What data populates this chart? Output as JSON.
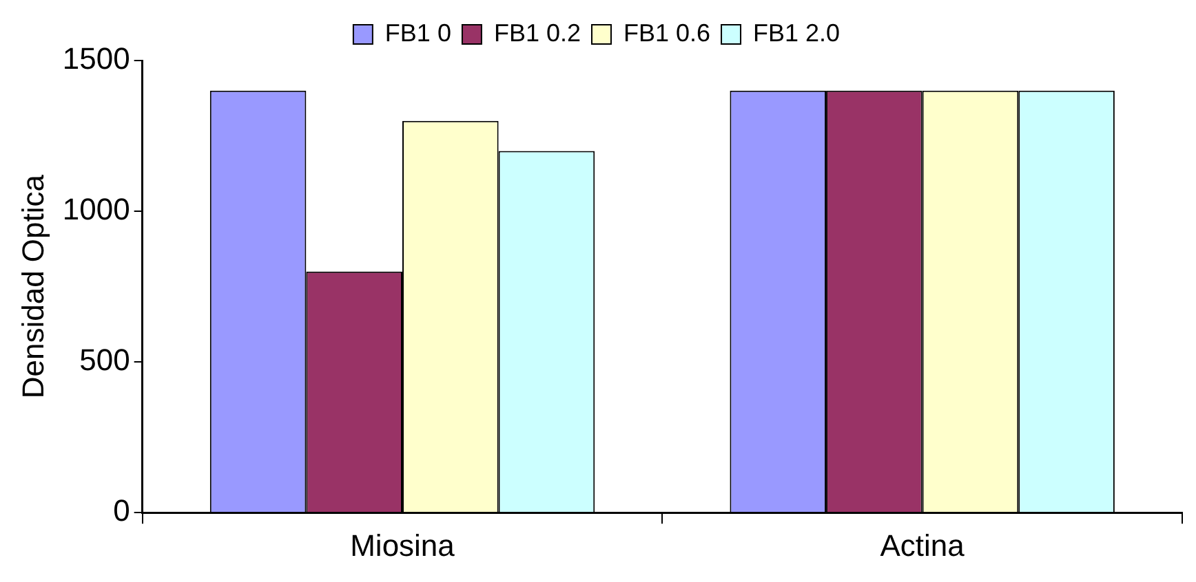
{
  "chart_data": {
    "type": "bar",
    "ylabel": "Densidad Optica",
    "categories": [
      "Miosina",
      "Actina"
    ],
    "series": [
      {
        "name": "FB1 0",
        "color": "#9999ff",
        "values": [
          1400,
          1400
        ]
      },
      {
        "name": "FB1 0.2",
        "color": "#993366",
        "values": [
          800,
          1400
        ]
      },
      {
        "name": "FB1 0.6",
        "color": "#ffffcc",
        "values": [
          1300,
          1400
        ]
      },
      {
        "name": "FB1 2.0",
        "color": "#ccffff",
        "values": [
          1200,
          1400
        ]
      }
    ],
    "ylim": [
      0,
      1500
    ],
    "yticks": [
      0,
      500,
      1000,
      1500
    ],
    "grid": false,
    "legend": "top"
  }
}
